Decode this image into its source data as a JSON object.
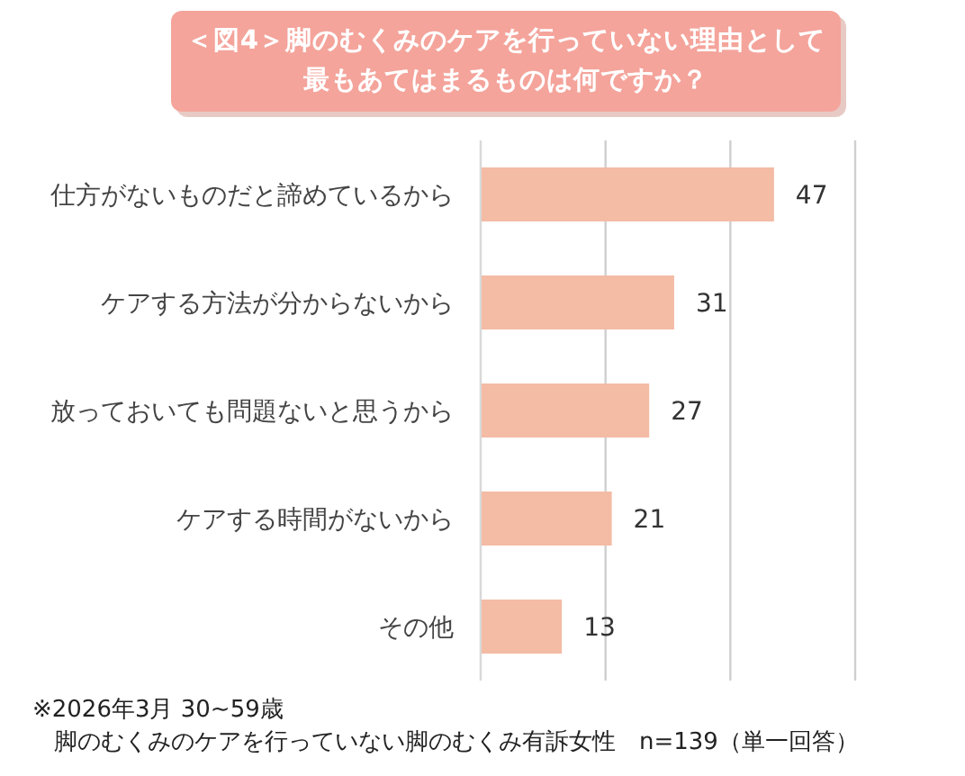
{
  "chart_data": {
    "type": "bar",
    "orientation": "horizontal",
    "title": "＜図4＞脚のむくみのケアを行っていない理由として最もあてはまるものは何ですか？",
    "categories": [
      "仕方がないものだと諦めているから",
      "ケアする方法が分からないから",
      "放っておいても問題ないと思うから",
      "ケアする時間がないから",
      "その他"
    ],
    "values": [
      47,
      31,
      27,
      21,
      13
    ],
    "color": "#f4bba5",
    "data_labels": true,
    "grid": "x",
    "tick_labels": "y",
    "xlim": [
      0,
      60
    ],
    "xticks": [
      {
        "value": 0,
        "label": null
      },
      {
        "value": 20,
        "label": null
      },
      {
        "value": 40,
        "label": null
      },
      {
        "value": 60,
        "label": null
      }
    ],
    "annotations": [
      "※2026年3月 30~59歳",
      "脚のむくみのケアを行っていない脚のむくみ有訴女性　n=139（単一回答）"
    ]
  }
}
